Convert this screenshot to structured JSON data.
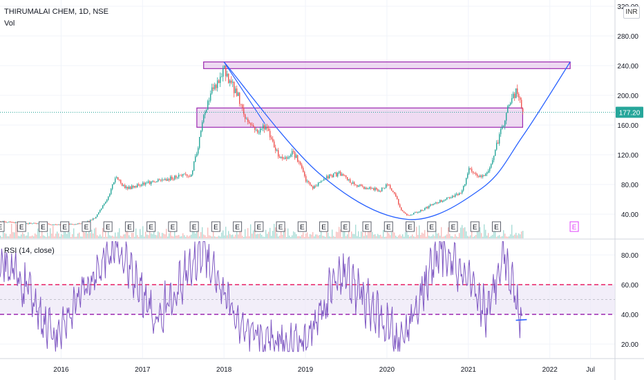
{
  "header": {
    "symbol": "THIRUMALAI CHEM, 1D, NSE",
    "vol_label": "Vol",
    "currency": "INR",
    "rsi_label": "RSI (14, close)"
  },
  "colors": {
    "candle_up": "#26a69a",
    "candle_down": "#ef5350",
    "zone_fill": "#e1bee7",
    "zone_stroke": "#9c27b0",
    "curve": "#2962ff",
    "rsi_line": "#7e57c2",
    "rsi_levels": "#e91e63",
    "rsi_band": "#ede7f6",
    "price_tag": "#26a69a"
  },
  "chart_data": [
    {
      "type": "candlestick",
      "title": "THIRUMALAI CHEM, 1D, NSE",
      "ylim": [
        20,
        330
      ],
      "y_ticks": [
        40,
        80,
        120,
        160,
        200,
        240,
        280,
        320
      ],
      "y_tick_labels": [
        "40.00",
        "80.00",
        "120.00",
        "160.00",
        "200.00",
        "240.00",
        "280.00",
        "320.00"
      ],
      "last_price": 177.2,
      "last_price_label": "177.20",
      "x_ticks": [
        "2016",
        "2017",
        "2018",
        "2019",
        "2020",
        "2021",
        "2022",
        "Jul"
      ],
      "close_path": [
        [
          "2015-04",
          30
        ],
        [
          "2015-07",
          28
        ],
        [
          "2015-10",
          27
        ],
        [
          "2016-01",
          26
        ],
        [
          "2016-04",
          27
        ],
        [
          "2016-06",
          35
        ],
        [
          "2016-08",
          65
        ],
        [
          "2016-09",
          92
        ],
        [
          "2016-10",
          78
        ],
        [
          "2016-11",
          75
        ],
        [
          "2017-01",
          82
        ],
        [
          "2017-03",
          84
        ],
        [
          "2017-05",
          88
        ],
        [
          "2017-07",
          94
        ],
        [
          "2017-08",
          90
        ],
        [
          "2017-09",
          125
        ],
        [
          "2017-10",
          175
        ],
        [
          "2017-11",
          205
        ],
        [
          "2017-12",
          215
        ],
        [
          "2018-01",
          235
        ],
        [
          "2018-02",
          215
        ],
        [
          "2018-03",
          200
        ],
        [
          "2018-04",
          170
        ],
        [
          "2018-05",
          160
        ],
        [
          "2018-06",
          150
        ],
        [
          "2018-07",
          160
        ],
        [
          "2018-08",
          140
        ],
        [
          "2018-09",
          118
        ],
        [
          "2018-10",
          115
        ],
        [
          "2018-11",
          125
        ],
        [
          "2018-12",
          110
        ],
        [
          "2019-01",
          85
        ],
        [
          "2019-02",
          75
        ],
        [
          "2019-04",
          90
        ],
        [
          "2019-06",
          95
        ],
        [
          "2019-08",
          80
        ],
        [
          "2019-10",
          75
        ],
        [
          "2019-12",
          72
        ],
        [
          "2020-01",
          80
        ],
        [
          "2020-02",
          70
        ],
        [
          "2020-03",
          45
        ],
        [
          "2020-04",
          38
        ],
        [
          "2020-06",
          45
        ],
        [
          "2020-08",
          55
        ],
        [
          "2020-10",
          62
        ],
        [
          "2020-12",
          70
        ],
        [
          "2021-01",
          100
        ],
        [
          "2021-02",
          92
        ],
        [
          "2021-03",
          90
        ],
        [
          "2021-04",
          100
        ],
        [
          "2021-05",
          130
        ],
        [
          "2021-06",
          160
        ],
        [
          "2021-07",
          190
        ],
        [
          "2021-08",
          205
        ],
        [
          "2021-09",
          177
        ]
      ],
      "zones": [
        {
          "from": "2017-10",
          "to": "2022-04",
          "low": 236,
          "high": 245
        },
        {
          "from": "2017-09",
          "to": "2021-09",
          "low": 157,
          "high": 183
        }
      ],
      "cup_curve": [
        [
          "2018-01",
          245
        ],
        [
          "2019-03",
          95
        ],
        [
          "2020-04",
          33
        ],
        [
          "2021-03",
          75
        ],
        [
          "2021-09",
          145
        ],
        [
          "2022-04",
          245
        ]
      ],
      "trendline": [
        [
          "2018-01",
          245
        ],
        [
          "2018-07",
          162
        ]
      ],
      "earnings_markers": 24
    },
    {
      "type": "line",
      "title": "RSI (14, close)",
      "ylim": [
        10,
        90
      ],
      "y_ticks": [
        20,
        40,
        60,
        80
      ],
      "y_tick_labels": [
        "20.00",
        "40.00",
        "60.00",
        "80.00"
      ],
      "levels": [
        40,
        50,
        60
      ],
      "range": [
        "2015-04",
        "2021-09"
      ],
      "min": 15,
      "max": 89,
      "anchor_points": [
        [
          "2015-06",
          70
        ],
        [
          "2015-12",
          25
        ],
        [
          "2016-09",
          88
        ],
        [
          "2017-03",
          35
        ],
        [
          "2017-10",
          85
        ],
        [
          "2018-04",
          25
        ],
        [
          "2019-01",
          20
        ],
        [
          "2019-06",
          70
        ],
        [
          "2020-03",
          20
        ],
        [
          "2020-09",
          85
        ],
        [
          "2021-04",
          40
        ],
        [
          "2021-06",
          85
        ],
        [
          "2021-09",
          35
        ]
      ],
      "annotation_line": {
        "from": "2021-08",
        "to": "2021-09",
        "value": 36
      }
    }
  ]
}
